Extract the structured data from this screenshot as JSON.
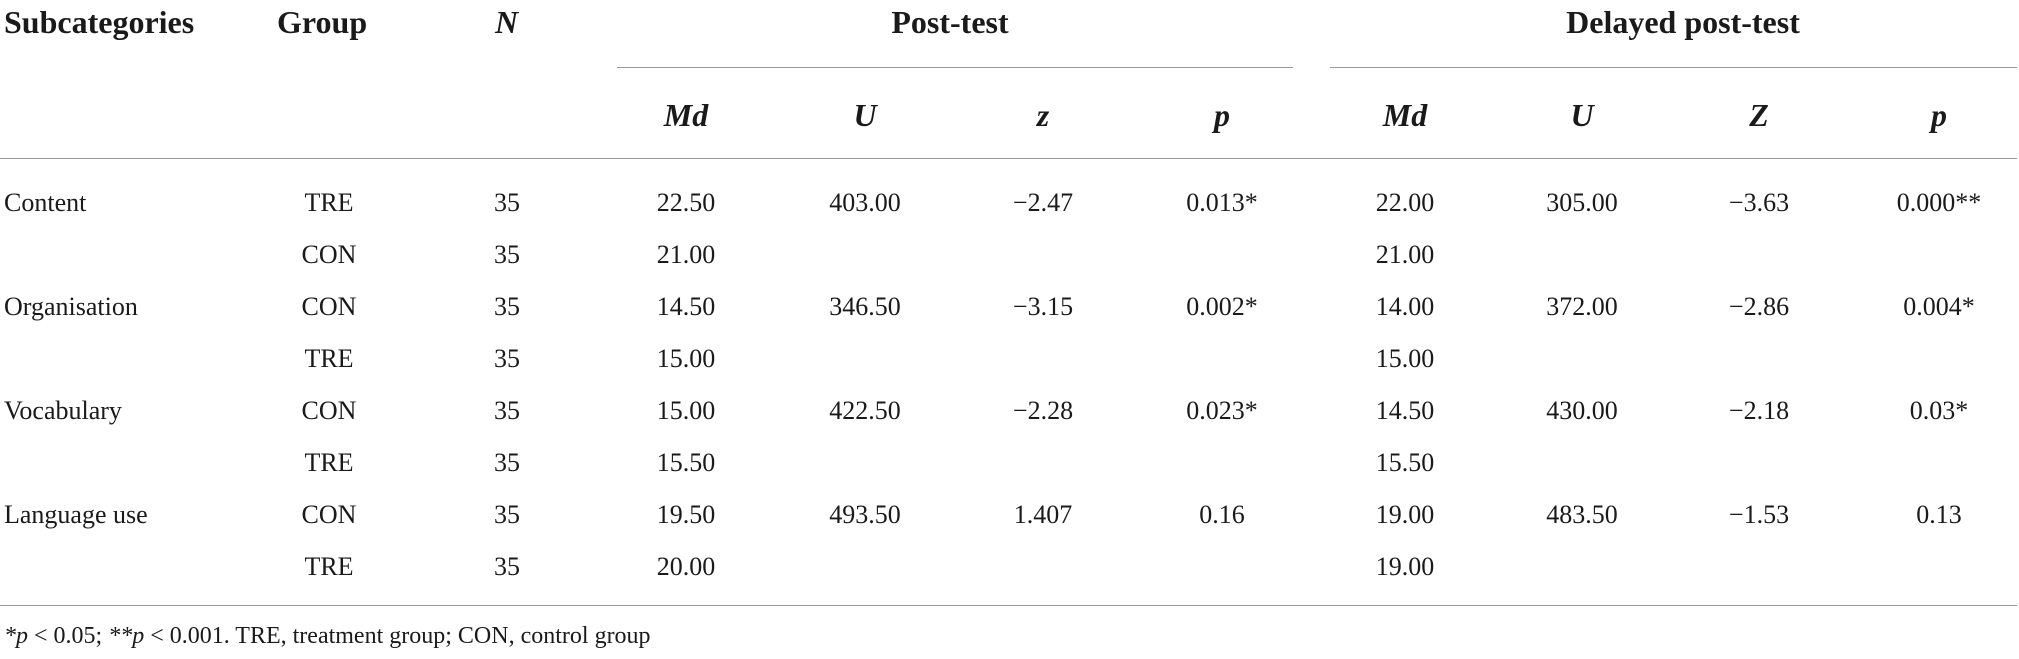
{
  "table": {
    "headers": {
      "subcategories": "Subcategories",
      "group": "Group",
      "n": "N",
      "post_test": "Post-test",
      "delayed_post_test": "Delayed post-test"
    },
    "subheaders": {
      "post": [
        "Md",
        "U",
        "z",
        "p"
      ],
      "delayed": [
        "Md",
        "U",
        "Z",
        "p"
      ]
    },
    "rows": [
      {
        "subcategory": "Content",
        "group": "TRE",
        "n": "35",
        "post_md": "22.50",
        "post_u": "403.00",
        "post_z": "−2.47",
        "post_p": "0.013*",
        "del_md": "22.00",
        "del_u": "305.00",
        "del_z": "−3.63",
        "del_p": "0.000**"
      },
      {
        "subcategory": "",
        "group": "CON",
        "n": "35",
        "post_md": "21.00",
        "post_u": "",
        "post_z": "",
        "post_p": "",
        "del_md": "21.00",
        "del_u": "",
        "del_z": "",
        "del_p": ""
      },
      {
        "subcategory": "Organisation",
        "group": "CON",
        "n": "35",
        "post_md": "14.50",
        "post_u": "346.50",
        "post_z": "−3.15",
        "post_p": "0.002*",
        "del_md": "14.00",
        "del_u": "372.00",
        "del_z": "−2.86",
        "del_p": "0.004*"
      },
      {
        "subcategory": "",
        "group": "TRE",
        "n": "35",
        "post_md": "15.00",
        "post_u": "",
        "post_z": "",
        "post_p": "",
        "del_md": "15.00",
        "del_u": "",
        "del_z": "",
        "del_p": ""
      },
      {
        "subcategory": "Vocabulary",
        "group": "CON",
        "n": "35",
        "post_md": "15.00",
        "post_u": "422.50",
        "post_z": "−2.28",
        "post_p": "0.023*",
        "del_md": "14.50",
        "del_u": "430.00",
        "del_z": "−2.18",
        "del_p": "0.03*"
      },
      {
        "subcategory": "",
        "group": "TRE",
        "n": "35",
        "post_md": "15.50",
        "post_u": "",
        "post_z": "",
        "post_p": "",
        "del_md": "15.50",
        "del_u": "",
        "del_z": "",
        "del_p": ""
      },
      {
        "subcategory": "Language use",
        "group": "CON",
        "n": "35",
        "post_md": "19.50",
        "post_u": "493.50",
        "post_z": "1.407",
        "post_p": "0.16",
        "del_md": "19.00",
        "del_u": "483.50",
        "del_z": "−1.53",
        "del_p": "0.13"
      },
      {
        "subcategory": "",
        "group": "TRE",
        "n": "35",
        "post_md": "20.00",
        "post_u": "",
        "post_z": "",
        "post_p": "",
        "del_md": "19.00",
        "del_u": "",
        "del_z": "",
        "del_p": ""
      }
    ]
  },
  "footnote": {
    "p1_symbol": "*p",
    "p1_rest": " < 0.05; ",
    "p2_symbol": "**p",
    "p2_rest": " < 0.001. TRE, treatment group; CON, control group"
  }
}
